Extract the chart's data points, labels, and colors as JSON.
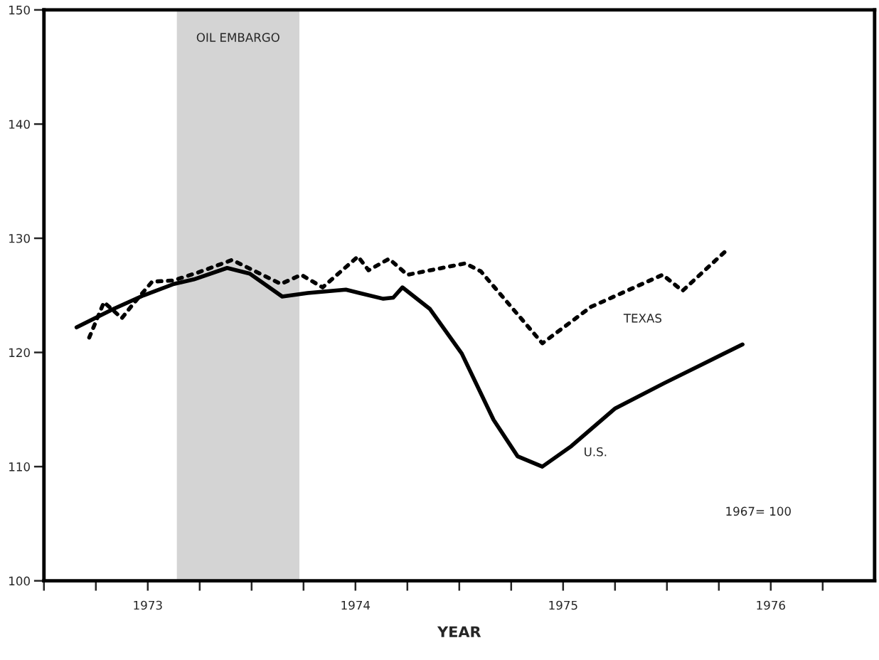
{
  "chart_data": {
    "type": "line",
    "xlabel": "YEAR",
    "xlim": [
      1973,
      1977
    ],
    "ylim": [
      100,
      150
    ],
    "xticks": [
      {
        "value": 1973,
        "label": null
      },
      {
        "value": 1973.25,
        "label": null
      },
      {
        "value": 1973.5,
        "label": "1973"
      },
      {
        "value": 1973.75,
        "label": null
      },
      {
        "value": 1974,
        "label": null
      },
      {
        "value": 1974.25,
        "label": null
      },
      {
        "value": 1974.5,
        "label": "1974"
      },
      {
        "value": 1974.75,
        "label": null
      },
      {
        "value": 1975,
        "label": null
      },
      {
        "value": 1975.25,
        "label": null
      },
      {
        "value": 1975.5,
        "label": "1975"
      },
      {
        "value": 1975.75,
        "label": null
      },
      {
        "value": 1976,
        "label": null
      },
      {
        "value": 1976.25,
        "label": null
      },
      {
        "value": 1976.5,
        "label": "1976"
      },
      {
        "value": 1976.75,
        "label": null
      }
    ],
    "yticks": [
      100,
      110,
      120,
      130,
      140,
      150
    ],
    "grid": false,
    "legend": false,
    "series": [
      {
        "name": "TEXAS",
        "color": "#000000",
        "line_style": "dotted",
        "x": [
          1973.218,
          1973.289,
          1973.375,
          1973.432,
          1973.521,
          1973.623,
          1973.742,
          1973.906,
          1974.141,
          1974.239,
          1974.342,
          1974.512,
          1974.563,
          1974.662,
          1974.75,
          1975.029,
          1975.104,
          1975.4,
          1975.635,
          1975.979,
          1976.075,
          1976.296
        ],
        "values": [
          121.3,
          124.4,
          123.0,
          124.3,
          126.2,
          126.3,
          127.0,
          128.1,
          126.0,
          126.8,
          125.7,
          128.4,
          127.2,
          128.2,
          126.8,
          127.8,
          127.1,
          120.8,
          124.0,
          126.8,
          125.4,
          129.1
        ]
      },
      {
        "name": "U.S.",
        "color": "#000000",
        "line_style": "solid",
        "x": [
          1973.157,
          1973.334,
          1973.48,
          1973.626,
          1973.722,
          1973.882,
          1973.991,
          1974.147,
          1974.27,
          1974.454,
          1974.634,
          1974.682,
          1974.726,
          1974.859,
          1975.012,
          1975.165,
          1975.281,
          1975.4,
          1975.54,
          1975.751,
          1975.986,
          1976.364
        ],
        "values": [
          122.2,
          123.8,
          125.0,
          126.0,
          126.4,
          127.4,
          126.9,
          124.9,
          125.2,
          125.5,
          124.7,
          124.8,
          125.7,
          123.8,
          119.9,
          114.1,
          110.9,
          110.0,
          111.8,
          115.1,
          117.3,
          120.7
        ]
      }
    ],
    "bands": [
      {
        "axis": "x",
        "from": 1973.64,
        "to": 1974.23,
        "label": "OIL EMBARGO",
        "color": "#d4d4d4"
      }
    ],
    "annotations": [
      "1967= 100"
    ]
  }
}
